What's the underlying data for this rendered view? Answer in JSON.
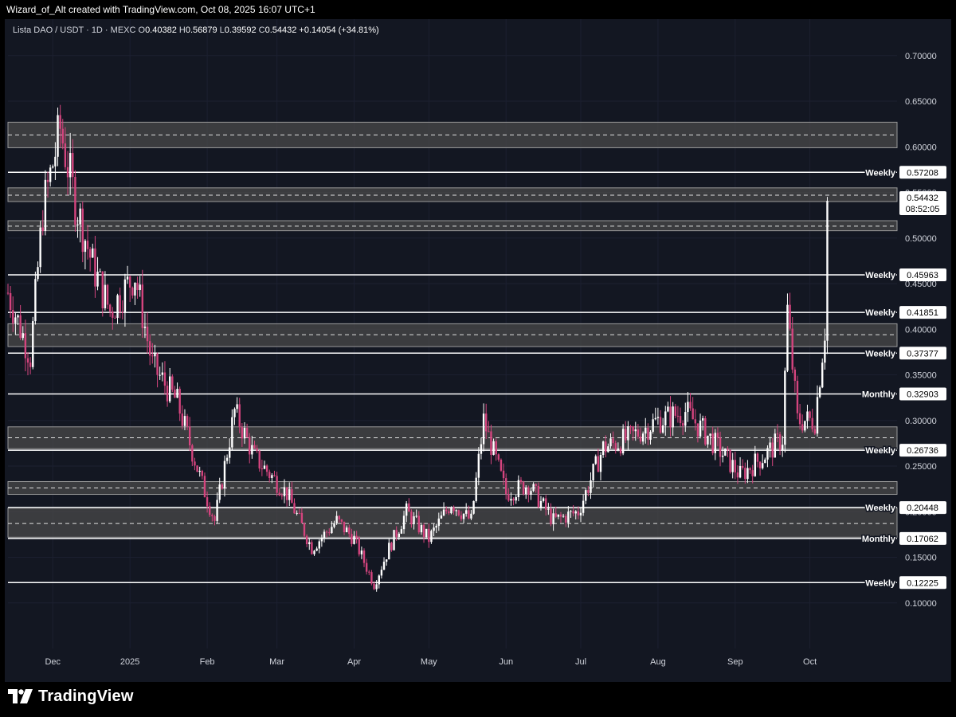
{
  "header": {
    "attribution": "Wizard_of_Alt created with TradingView.com, Oct 08, 2025 16:07 UTC+1"
  },
  "symbol_bar": {
    "name": "Lista DAO / USDT · 1D · MEXC",
    "open_label": "O",
    "open": "0.40382",
    "high_label": "H",
    "high": "0.56879",
    "low_label": "L",
    "low": "0.39592",
    "close_label": "C",
    "close": "0.54432",
    "change": "+0.14054 (+34.81%)"
  },
  "branding": {
    "logo_text": "TradingView"
  },
  "colors": {
    "background": "#131722",
    "candle_up": "#ffffff",
    "candle_down": "#d4447e",
    "zone_fill": "#4a4a4a",
    "level_line": "#ffffff",
    "grid": "#1c2030"
  },
  "chart_data": {
    "type": "candlestick",
    "title": "Lista DAO / USDT · 1D · MEXC",
    "ylim": [
      0.05,
      0.74
    ],
    "x_range": [
      "2024-11-13",
      "2025-11-05"
    ],
    "y_ticks": [
      "0.70000",
      "0.65000",
      "0.60000",
      "0.55000",
      "0.50000",
      "0.45000",
      "0.40000",
      "0.35000",
      "0.30000",
      "0.25000",
      "0.20000",
      "0.15000",
      "0.10000"
    ],
    "x_ticks": [
      {
        "label": "Dec",
        "date": "2024-12-01"
      },
      {
        "label": "2025",
        "date": "2025-01-01"
      },
      {
        "label": "Feb",
        "date": "2025-02-01"
      },
      {
        "label": "Mar",
        "date": "2025-03-01"
      },
      {
        "label": "Apr",
        "date": "2025-04-01"
      },
      {
        "label": "May",
        "date": "2025-05-01"
      },
      {
        "label": "Jun",
        "date": "2025-06-01"
      },
      {
        "label": "Jul",
        "date": "2025-07-01"
      },
      {
        "label": "Aug",
        "date": "2025-08-01"
      },
      {
        "label": "Sep",
        "date": "2025-09-01"
      },
      {
        "label": "Oct",
        "date": "2025-10-01"
      }
    ],
    "levels": [
      {
        "label": "Weekly",
        "value": "0.57208"
      },
      {
        "label": "Weekly",
        "value": "0.45963"
      },
      {
        "label": "Weekly",
        "value": "0.41851"
      },
      {
        "label": "Weekly",
        "value": "0.37377"
      },
      {
        "label": "Monthly",
        "value": "0.32903"
      },
      {
        "label": "Weekly",
        "value": "0.26736"
      },
      {
        "label": "Weekly",
        "value": "0.20448"
      },
      {
        "label": "Monthly",
        "value": "0.17062"
      },
      {
        "label": "Weekly",
        "value": "0.12225"
      }
    ],
    "zones": [
      {
        "low": 0.599,
        "high": 0.627,
        "mid": 0.613
      },
      {
        "low": 0.54,
        "high": 0.555,
        "mid": 0.547
      },
      {
        "low": 0.508,
        "high": 0.519,
        "mid": 0.513
      },
      {
        "low": 0.381,
        "high": 0.406,
        "mid": 0.394
      },
      {
        "low": 0.269,
        "high": 0.293,
        "mid": 0.281
      },
      {
        "low": 0.219,
        "high": 0.233,
        "mid": 0.226
      },
      {
        "low": 0.172,
        "high": 0.204,
        "mid": 0.187
      }
    ],
    "last_price": {
      "value": "0.54432",
      "countdown": "08:52:05"
    },
    "price_path": [
      {
        "date": "2024-11-13",
        "price": 0.44
      },
      {
        "date": "2024-11-22",
        "price": 0.37
      },
      {
        "date": "2024-11-27",
        "price": 0.53
      },
      {
        "date": "2024-12-04",
        "price": 0.62
      },
      {
        "date": "2024-12-10",
        "price": 0.54
      },
      {
        "date": "2024-12-17",
        "price": 0.47
      },
      {
        "date": "2024-12-24",
        "price": 0.42
      },
      {
        "date": "2025-01-03",
        "price": 0.46
      },
      {
        "date": "2025-01-10",
        "price": 0.36
      },
      {
        "date": "2025-01-20",
        "price": 0.32
      },
      {
        "date": "2025-01-30",
        "price": 0.23
      },
      {
        "date": "2025-02-04",
        "price": 0.19
      },
      {
        "date": "2025-02-12",
        "price": 0.31
      },
      {
        "date": "2025-02-20",
        "price": 0.26
      },
      {
        "date": "2025-03-05",
        "price": 0.22
      },
      {
        "date": "2025-03-15",
        "price": 0.16
      },
      {
        "date": "2025-03-25",
        "price": 0.19
      },
      {
        "date": "2025-04-01",
        "price": 0.17
      },
      {
        "date": "2025-04-09",
        "price": 0.12
      },
      {
        "date": "2025-04-15",
        "price": 0.16
      },
      {
        "date": "2025-04-22",
        "price": 0.2
      },
      {
        "date": "2025-05-01",
        "price": 0.17
      },
      {
        "date": "2025-05-10",
        "price": 0.21
      },
      {
        "date": "2025-05-18",
        "price": 0.19
      },
      {
        "date": "2025-05-23",
        "price": 0.3
      },
      {
        "date": "2025-06-01",
        "price": 0.22
      },
      {
        "date": "2025-06-10",
        "price": 0.23
      },
      {
        "date": "2025-06-20",
        "price": 0.19
      },
      {
        "date": "2025-06-30",
        "price": 0.2
      },
      {
        "date": "2025-07-10",
        "price": 0.27
      },
      {
        "date": "2025-07-20",
        "price": 0.28
      },
      {
        "date": "2025-08-01",
        "price": 0.3
      },
      {
        "date": "2025-08-12",
        "price": 0.31
      },
      {
        "date": "2025-08-22",
        "price": 0.28
      },
      {
        "date": "2025-09-03",
        "price": 0.24
      },
      {
        "date": "2025-09-12",
        "price": 0.26
      },
      {
        "date": "2025-09-20",
        "price": 0.28
      },
      {
        "date": "2025-09-22",
        "price": 0.42
      },
      {
        "date": "2025-09-26",
        "price": 0.3
      },
      {
        "date": "2025-10-03",
        "price": 0.3
      },
      {
        "date": "2025-10-07",
        "price": 0.4
      },
      {
        "date": "2025-10-08",
        "price": 0.54
      }
    ]
  }
}
